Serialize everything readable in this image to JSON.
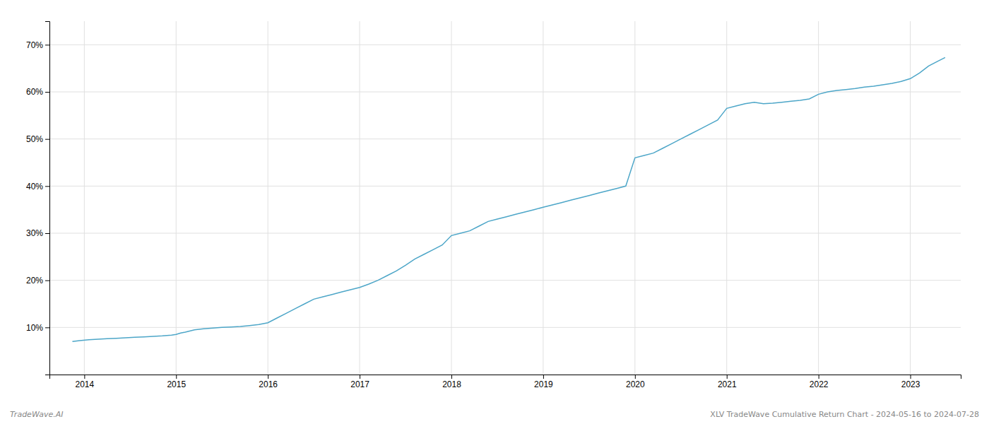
{
  "chart_data": {
    "type": "line",
    "annotations": [
      "TradeWave.AI",
      "XLV TradeWave Cumulative Return Chart - 2024-05-16 to 2024-07-28"
    ],
    "color": "#4da6c8",
    "x": [
      2013.87,
      2013.95,
      2014.05,
      2014.15,
      2014.25,
      2014.35,
      2014.45,
      2014.55,
      2014.65,
      2014.75,
      2014.85,
      2014.95,
      2015.0,
      2015.05,
      2015.1,
      2015.2,
      2015.3,
      2015.5,
      2015.6,
      2015.7,
      2015.8,
      2015.9,
      2016.0,
      2016.1,
      2016.2,
      2016.3,
      2016.4,
      2016.5,
      2016.6,
      2016.7,
      2016.8,
      2016.9,
      2017.0,
      2017.1,
      2017.2,
      2017.3,
      2017.4,
      2017.5,
      2017.6,
      2017.7,
      2017.8,
      2017.9,
      2018.0,
      2018.1,
      2018.2,
      2018.3,
      2018.4,
      2018.5,
      2018.6,
      2018.7,
      2018.8,
      2018.9,
      2019.0,
      2019.1,
      2019.2,
      2019.3,
      2019.4,
      2019.5,
      2019.6,
      2019.7,
      2019.8,
      2019.9,
      2020.0,
      2020.1,
      2020.2,
      2020.3,
      2020.4,
      2020.5,
      2020.6,
      2020.7,
      2020.8,
      2020.9,
      2021.0,
      2021.1,
      2021.2,
      2021.3,
      2021.4,
      2021.5,
      2021.6,
      2021.7,
      2021.8,
      2021.9,
      2022.0,
      2022.1,
      2022.2,
      2022.3,
      2022.4,
      2022.5,
      2022.6,
      2022.7,
      2022.8,
      2022.9,
      2023.0,
      2023.1,
      2023.2,
      2023.3,
      2023.38
    ],
    "values": [
      7.0,
      7.2,
      7.4,
      7.5,
      7.6,
      7.7,
      7.8,
      7.9,
      8.0,
      8.1,
      8.2,
      8.35,
      8.5,
      8.8,
      9.0,
      9.5,
      9.7,
      10.0,
      10.1,
      10.2,
      10.4,
      10.6,
      11.0,
      12.0,
      13.0,
      14.0,
      15.0,
      16.0,
      16.5,
      17.0,
      17.5,
      18.0,
      18.5,
      19.2,
      20.0,
      21.0,
      22.0,
      23.2,
      24.5,
      25.5,
      26.5,
      27.5,
      29.5,
      30.0,
      30.5,
      31.5,
      32.5,
      33.0,
      33.5,
      34.0,
      34.5,
      35.0,
      35.5,
      36.0,
      36.5,
      37.0,
      37.5,
      38.0,
      38.5,
      39.0,
      39.5,
      40.0,
      46.0,
      46.5,
      47.0,
      48.0,
      49.0,
      50.0,
      51.0,
      52.0,
      53.0,
      54.0,
      56.5,
      57.0,
      57.5,
      57.8,
      57.5,
      57.6,
      57.8,
      58.0,
      58.2,
      58.5,
      59.5,
      60.0,
      60.3,
      60.5,
      60.7,
      61.0,
      61.2,
      61.5,
      61.8,
      62.2,
      62.8,
      64.0,
      65.5,
      66.5,
      67.3
    ],
    "xlim": [
      2013.62,
      2023.55
    ],
    "xticks": [
      2014,
      2015,
      2016,
      2017,
      2018,
      2019,
      2020,
      2021,
      2022,
      2023
    ],
    "ylim": [
      0,
      75
    ],
    "yticks": [
      {
        "value": 10,
        "label": "10%"
      },
      {
        "value": 20,
        "label": "20%"
      },
      {
        "value": 30,
        "label": "30%"
      },
      {
        "value": 40,
        "label": "40%"
      },
      {
        "value": 50,
        "label": "50%"
      },
      {
        "value": 60,
        "label": "60%"
      },
      {
        "value": 70,
        "label": "70%"
      }
    ],
    "grid": true
  }
}
